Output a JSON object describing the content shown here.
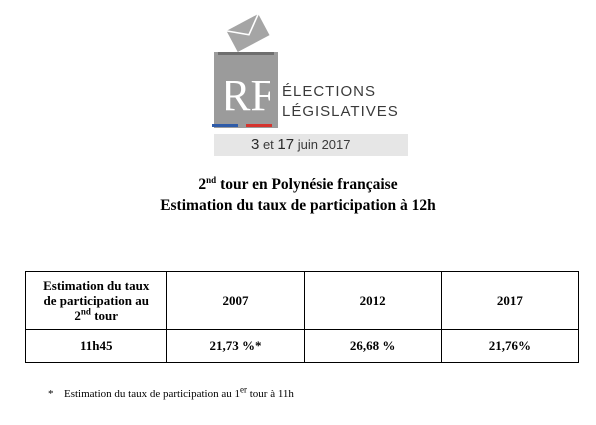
{
  "logo": {
    "monogram": "RF",
    "title_line1": "ÉLECTIONS",
    "title_line2": "LÉGISLATIVES",
    "date_day1": "3",
    "date_connector": " et ",
    "date_day2": "17",
    "date_rest": " juin 2017",
    "colors": {
      "urn_gray": "#9b9b9b",
      "stripe_blue": "#2e5ba8",
      "stripe_red": "#d6342e",
      "date_band": "#e6e6e6"
    }
  },
  "heading": {
    "line1_prefix": "2",
    "line1_sup": "nd",
    "line1_rest": " tour en Polynésie française",
    "line2": "Estimation du taux de participation à 12h"
  },
  "table": {
    "header_first_part1": "Estimation du taux",
    "header_first_part2": "de participation au",
    "header_first_part3_prefix": "2",
    "header_first_part3_sup": "nd",
    "header_first_part3_rest": " tour",
    "years": [
      "2007",
      "2012",
      "2017"
    ],
    "row": {
      "label": "11h45",
      "values": [
        "21,73 %*",
        "26,68 %",
        "21,76%"
      ]
    }
  },
  "footnote": {
    "marker": "*",
    "text_prefix": "Estimation du taux de participation au 1",
    "text_sup": "er",
    "text_rest": " tour à 11h"
  }
}
